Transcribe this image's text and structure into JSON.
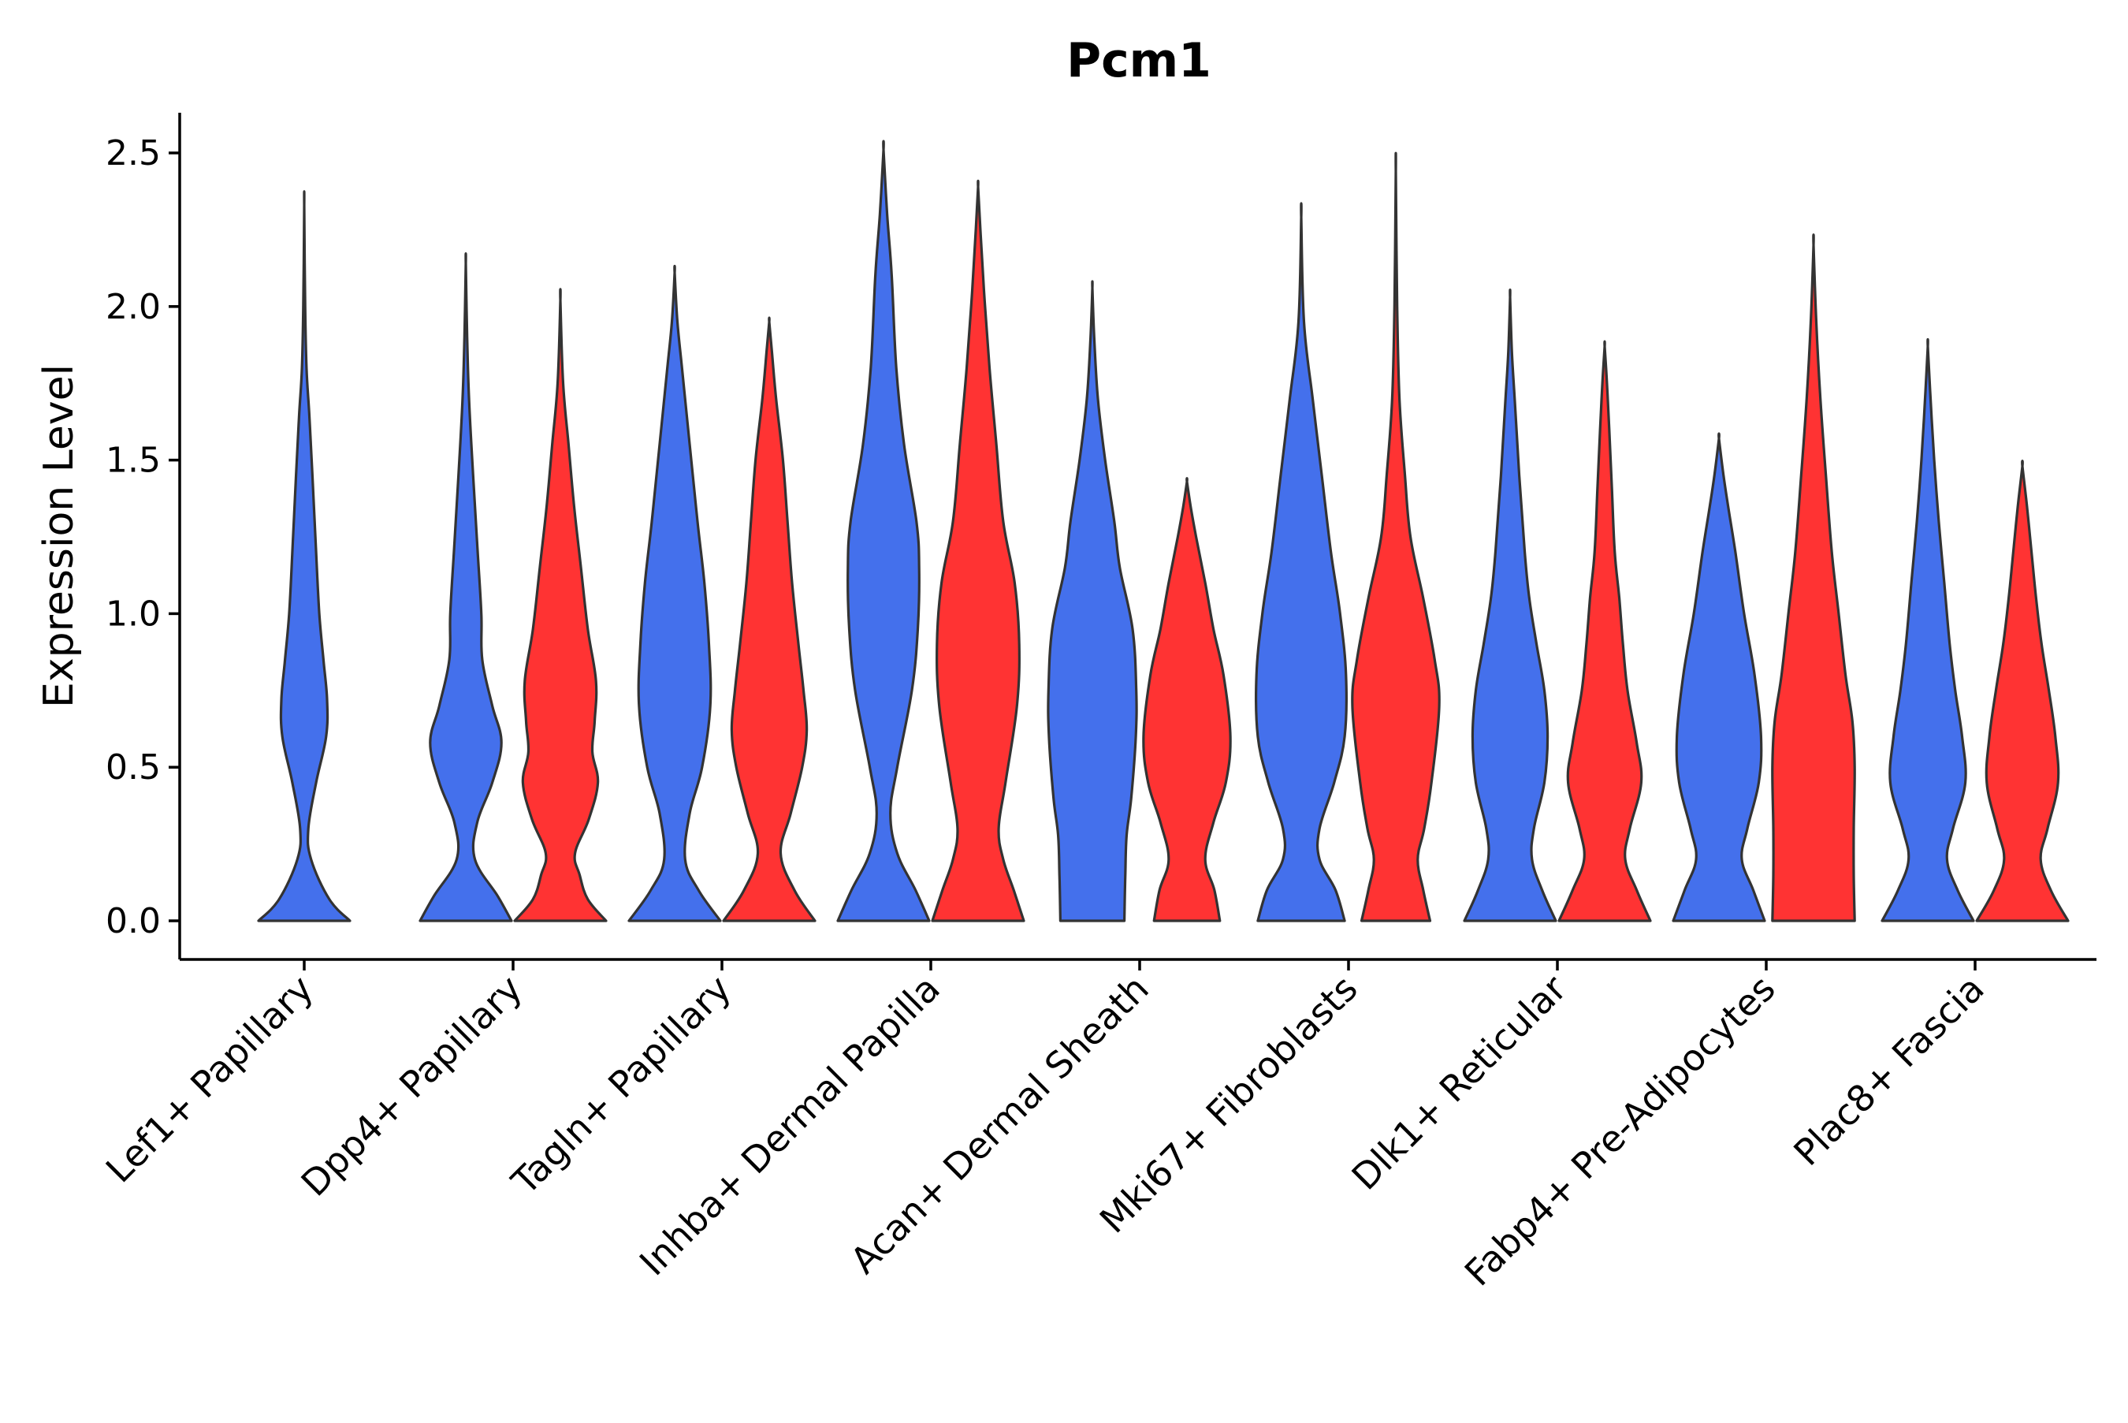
{
  "chart_data": {
    "type": "violin",
    "title": "Pcm1",
    "xlabel": "",
    "ylabel": "Expression Level",
    "ylim": [
      -0.12,
      2.63
    ],
    "yticks": [
      "0.0",
      "0.5",
      "1.0",
      "1.5",
      "2.0",
      "2.5"
    ],
    "ytick_values": [
      0,
      0.5,
      1.0,
      1.5,
      2.0,
      2.5
    ],
    "grid": false,
    "split_colors": [
      "#4470EC",
      "#FF3333"
    ],
    "categories": [
      "Lef1+ Papillary",
      "Dpp4+ Papillary",
      "Tagln+ Papillary",
      "Inhba+ Dermal Papilla",
      "Acan+ Dermal Sheath",
      "Mki67+ Fibroblasts",
      "Dlk1+ Reticular",
      "Fabp4+ Pre-Adipocytes",
      "Plac8+ Fascia"
    ],
    "violins": [
      {
        "category": "Lef1+ Papillary",
        "group": "blue",
        "max": 2.33,
        "profile": [
          [
            0,
            1
          ],
          [
            0.07,
            0.55
          ],
          [
            0.2,
            0.15
          ],
          [
            0.3,
            0.09
          ],
          [
            0.45,
            0.26
          ],
          [
            0.6,
            0.48
          ],
          [
            0.72,
            0.5
          ],
          [
            0.85,
            0.42
          ],
          [
            1.0,
            0.33
          ],
          [
            1.2,
            0.26
          ],
          [
            1.45,
            0.18
          ],
          [
            1.65,
            0.11
          ],
          [
            1.8,
            0.05
          ],
          [
            2.0,
            0.02
          ],
          [
            2.33,
            0
          ]
        ]
      },
      {
        "category": "Dpp4+ Papillary",
        "group": "blue",
        "max": 2.14,
        "profile": [
          [
            0,
            1
          ],
          [
            0.08,
            0.7
          ],
          [
            0.2,
            0.2
          ],
          [
            0.32,
            0.25
          ],
          [
            0.45,
            0.58
          ],
          [
            0.58,
            0.78
          ],
          [
            0.7,
            0.58
          ],
          [
            0.85,
            0.36
          ],
          [
            1.0,
            0.34
          ],
          [
            1.2,
            0.26
          ],
          [
            1.45,
            0.16
          ],
          [
            1.7,
            0.07
          ],
          [
            1.9,
            0.03
          ],
          [
            2.14,
            0
          ]
        ]
      },
      {
        "category": "Dpp4+ Papillary",
        "group": "red",
        "max": 2.02,
        "profile": [
          [
            0,
            1
          ],
          [
            0.07,
            0.6
          ],
          [
            0.15,
            0.42
          ],
          [
            0.22,
            0.32
          ],
          [
            0.33,
            0.62
          ],
          [
            0.45,
            0.82
          ],
          [
            0.55,
            0.7
          ],
          [
            0.65,
            0.75
          ],
          [
            0.78,
            0.78
          ],
          [
            0.95,
            0.6
          ],
          [
            1.15,
            0.45
          ],
          [
            1.35,
            0.3
          ],
          [
            1.55,
            0.18
          ],
          [
            1.75,
            0.06
          ],
          [
            2.02,
            0
          ]
        ]
      },
      {
        "category": "Tagln+ Papillary",
        "group": "blue",
        "max": 2.11,
        "profile": [
          [
            0,
            1
          ],
          [
            0.1,
            0.52
          ],
          [
            0.2,
            0.23
          ],
          [
            0.35,
            0.33
          ],
          [
            0.5,
            0.6
          ],
          [
            0.7,
            0.78
          ],
          [
            0.9,
            0.75
          ],
          [
            1.1,
            0.65
          ],
          [
            1.3,
            0.5
          ],
          [
            1.55,
            0.33
          ],
          [
            1.8,
            0.16
          ],
          [
            1.95,
            0.06
          ],
          [
            2.11,
            0
          ]
        ]
      },
      {
        "category": "Tagln+ Papillary",
        "group": "red",
        "max": 1.95,
        "profile": [
          [
            0,
            1
          ],
          [
            0.1,
            0.55
          ],
          [
            0.22,
            0.25
          ],
          [
            0.35,
            0.47
          ],
          [
            0.5,
            0.72
          ],
          [
            0.62,
            0.82
          ],
          [
            0.75,
            0.75
          ],
          [
            0.9,
            0.64
          ],
          [
            1.1,
            0.5
          ],
          [
            1.3,
            0.4
          ],
          [
            1.5,
            0.3
          ],
          [
            1.7,
            0.15
          ],
          [
            1.85,
            0.06
          ],
          [
            1.95,
            0
          ]
        ]
      },
      {
        "category": "Inhba+ Dermal Papilla",
        "group": "blue",
        "max": 2.51,
        "profile": [
          [
            0,
            1
          ],
          [
            0.1,
            0.7
          ],
          [
            0.22,
            0.3
          ],
          [
            0.35,
            0.15
          ],
          [
            0.5,
            0.3
          ],
          [
            0.75,
            0.62
          ],
          [
            0.95,
            0.75
          ],
          [
            1.15,
            0.78
          ],
          [
            1.3,
            0.72
          ],
          [
            1.55,
            0.45
          ],
          [
            1.8,
            0.28
          ],
          [
            2.1,
            0.18
          ],
          [
            2.3,
            0.08
          ],
          [
            2.51,
            0
          ]
        ]
      },
      {
        "category": "Inhba+ Dermal Papilla",
        "group": "red",
        "max": 2.39,
        "profile": [
          [
            0,
            1
          ],
          [
            0.1,
            0.78
          ],
          [
            0.2,
            0.55
          ],
          [
            0.3,
            0.45
          ],
          [
            0.45,
            0.6
          ],
          [
            0.7,
            0.85
          ],
          [
            0.9,
            0.9
          ],
          [
            1.1,
            0.8
          ],
          [
            1.3,
            0.55
          ],
          [
            1.55,
            0.4
          ],
          [
            1.8,
            0.25
          ],
          [
            2.05,
            0.13
          ],
          [
            2.25,
            0.05
          ],
          [
            2.39,
            0
          ]
        ]
      },
      {
        "category": "Acan+ Dermal Sheath",
        "group": "blue",
        "max": 2.06,
        "profile": [
          [
            0,
            0.7
          ],
          [
            0.15,
            0.72
          ],
          [
            0.28,
            0.75
          ],
          [
            0.4,
            0.85
          ],
          [
            0.6,
            0.95
          ],
          [
            0.75,
            0.96
          ],
          [
            0.95,
            0.88
          ],
          [
            1.15,
            0.6
          ],
          [
            1.3,
            0.48
          ],
          [
            1.5,
            0.28
          ],
          [
            1.7,
            0.12
          ],
          [
            1.9,
            0.04
          ],
          [
            2.06,
            0
          ]
        ]
      },
      {
        "category": "Acan+ Dermal Sheath",
        "group": "red",
        "max": 1.43,
        "profile": [
          [
            0,
            0.72
          ],
          [
            0.1,
            0.6
          ],
          [
            0.2,
            0.4
          ],
          [
            0.32,
            0.58
          ],
          [
            0.45,
            0.85
          ],
          [
            0.6,
            0.95
          ],
          [
            0.8,
            0.8
          ],
          [
            0.95,
            0.58
          ],
          [
            1.1,
            0.4
          ],
          [
            1.25,
            0.2
          ],
          [
            1.35,
            0.08
          ],
          [
            1.43,
            0
          ]
        ]
      },
      {
        "category": "Mki67+ Fibroblasts",
        "group": "blue",
        "max": 2.29,
        "profile": [
          [
            0,
            0.95
          ],
          [
            0.1,
            0.75
          ],
          [
            0.2,
            0.4
          ],
          [
            0.3,
            0.4
          ],
          [
            0.45,
            0.72
          ],
          [
            0.6,
            0.95
          ],
          [
            0.8,
            0.98
          ],
          [
            1.0,
            0.85
          ],
          [
            1.2,
            0.65
          ],
          [
            1.45,
            0.45
          ],
          [
            1.7,
            0.25
          ],
          [
            1.95,
            0.06
          ],
          [
            2.29,
            0
          ]
        ]
      },
      {
        "category": "Mki67+ Fibroblasts",
        "group": "red",
        "max": 2.44,
        "profile": [
          [
            0,
            0.75
          ],
          [
            0.1,
            0.6
          ],
          [
            0.2,
            0.48
          ],
          [
            0.3,
            0.62
          ],
          [
            0.45,
            0.78
          ],
          [
            0.7,
            0.95
          ],
          [
            0.85,
            0.85
          ],
          [
            1.05,
            0.6
          ],
          [
            1.25,
            0.32
          ],
          [
            1.45,
            0.2
          ],
          [
            1.7,
            0.08
          ],
          [
            2.0,
            0.03
          ],
          [
            2.44,
            0
          ]
        ]
      },
      {
        "category": "Dlk1+ Reticular",
        "group": "blue",
        "max": 2.03,
        "profile": [
          [
            0,
            1
          ],
          [
            0.1,
            0.7
          ],
          [
            0.2,
            0.48
          ],
          [
            0.3,
            0.52
          ],
          [
            0.45,
            0.75
          ],
          [
            0.6,
            0.82
          ],
          [
            0.75,
            0.75
          ],
          [
            0.9,
            0.58
          ],
          [
            1.05,
            0.42
          ],
          [
            1.2,
            0.32
          ],
          [
            1.45,
            0.2
          ],
          [
            1.7,
            0.1
          ],
          [
            1.85,
            0.04
          ],
          [
            2.03,
            0
          ]
        ]
      },
      {
        "category": "Dlk1+ Reticular",
        "group": "red",
        "max": 1.87,
        "profile": [
          [
            0,
            1
          ],
          [
            0.1,
            0.7
          ],
          [
            0.2,
            0.45
          ],
          [
            0.3,
            0.55
          ],
          [
            0.45,
            0.8
          ],
          [
            0.58,
            0.7
          ],
          [
            0.75,
            0.5
          ],
          [
            0.9,
            0.4
          ],
          [
            1.05,
            0.32
          ],
          [
            1.2,
            0.22
          ],
          [
            1.4,
            0.16
          ],
          [
            1.6,
            0.1
          ],
          [
            1.75,
            0.05
          ],
          [
            1.87,
            0
          ]
        ]
      },
      {
        "category": "Fabp4+ Pre-Adipocytes",
        "group": "blue",
        "max": 1.57,
        "profile": [
          [
            0,
            1
          ],
          [
            0.1,
            0.75
          ],
          [
            0.2,
            0.5
          ],
          [
            0.3,
            0.62
          ],
          [
            0.45,
            0.87
          ],
          [
            0.6,
            0.92
          ],
          [
            0.8,
            0.78
          ],
          [
            1.0,
            0.55
          ],
          [
            1.2,
            0.36
          ],
          [
            1.35,
            0.2
          ],
          [
            1.45,
            0.1
          ],
          [
            1.57,
            0
          ]
        ]
      },
      {
        "category": "Fabp4+ Pre-Adipocytes",
        "group": "red",
        "max": 2.2,
        "profile": [
          [
            0,
            0.9
          ],
          [
            0.15,
            0.88
          ],
          [
            0.3,
            0.88
          ],
          [
            0.5,
            0.9
          ],
          [
            0.65,
            0.85
          ],
          [
            0.8,
            0.7
          ],
          [
            1.0,
            0.55
          ],
          [
            1.2,
            0.4
          ],
          [
            1.45,
            0.27
          ],
          [
            1.7,
            0.15
          ],
          [
            1.95,
            0.06
          ],
          [
            2.2,
            0
          ]
        ]
      },
      {
        "category": "Plac8+ Fascia",
        "group": "blue",
        "max": 1.87,
        "profile": [
          [
            0,
            1
          ],
          [
            0.1,
            0.65
          ],
          [
            0.2,
            0.42
          ],
          [
            0.3,
            0.55
          ],
          [
            0.45,
            0.82
          ],
          [
            0.6,
            0.75
          ],
          [
            0.75,
            0.6
          ],
          [
            0.9,
            0.48
          ],
          [
            1.1,
            0.36
          ],
          [
            1.3,
            0.24
          ],
          [
            1.5,
            0.14
          ],
          [
            1.7,
            0.06
          ],
          [
            1.87,
            0
          ]
        ]
      },
      {
        "category": "Plac8+ Fascia",
        "group": "red",
        "max": 1.48,
        "profile": [
          [
            0,
            1
          ],
          [
            0.1,
            0.62
          ],
          [
            0.2,
            0.4
          ],
          [
            0.3,
            0.55
          ],
          [
            0.45,
            0.78
          ],
          [
            0.6,
            0.72
          ],
          [
            0.75,
            0.58
          ],
          [
            0.9,
            0.42
          ],
          [
            1.05,
            0.3
          ],
          [
            1.2,
            0.2
          ],
          [
            1.35,
            0.1
          ],
          [
            1.48,
            0
          ]
        ]
      }
    ]
  }
}
